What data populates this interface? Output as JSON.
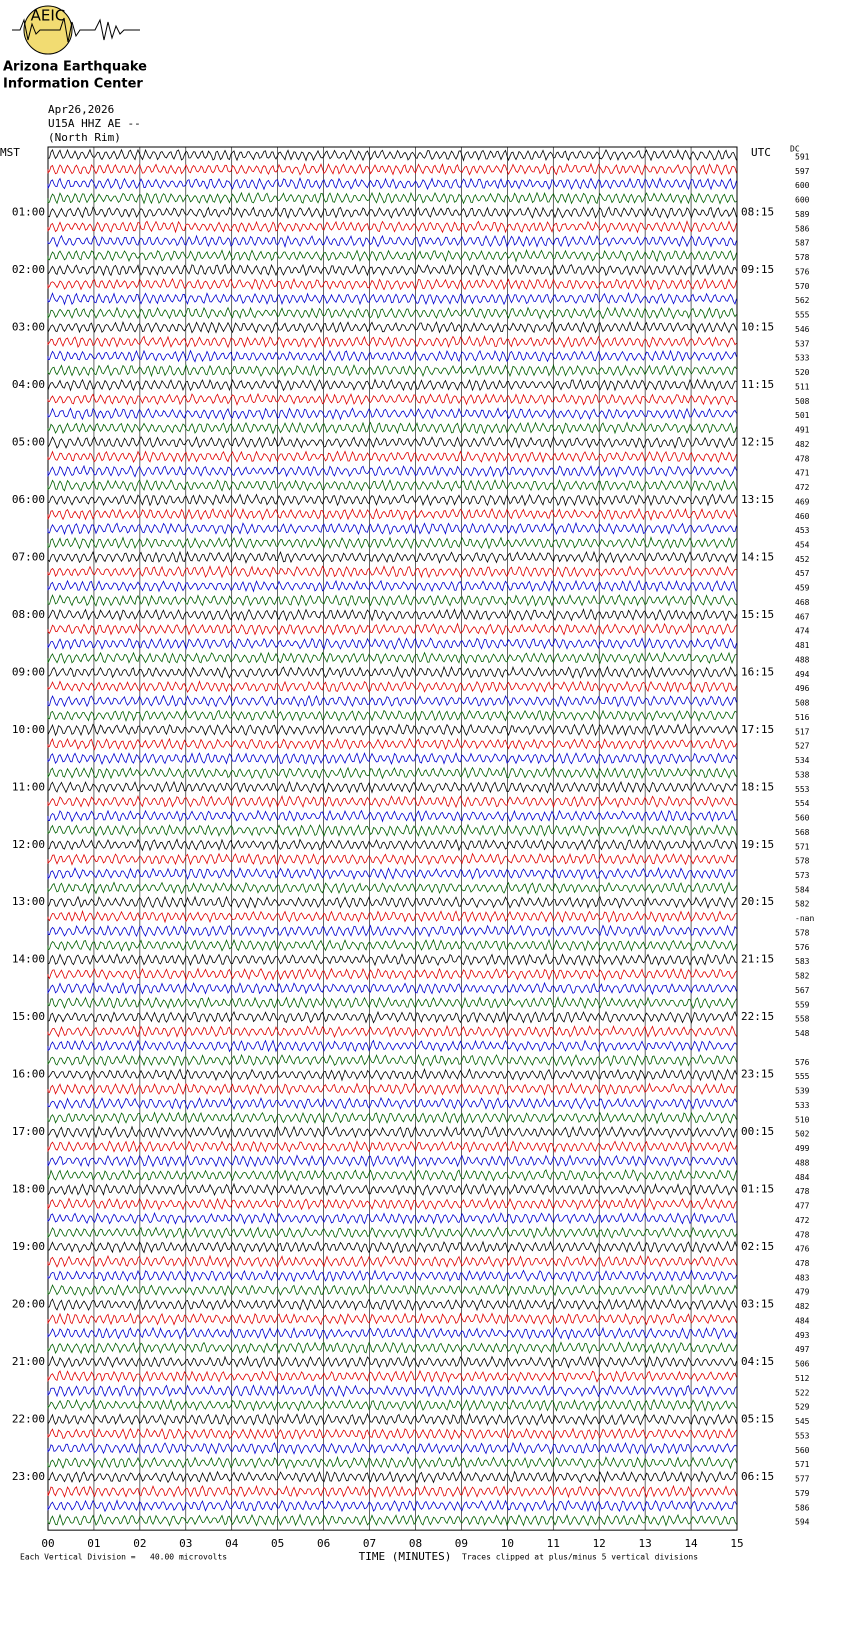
{
  "header": {
    "logo_text": "AEIC",
    "org_line1": "Arizona Earthquake",
    "org_line2": "Information Center",
    "date": "Apr26,2026",
    "station": "U15A HHZ AE --",
    "location": "(North Rim)"
  },
  "helicorder": {
    "left_zone": "MST",
    "right_zone": "UTC",
    "dc_header": "DC",
    "mst_hours": [
      "01:00",
      "02:00",
      "03:00",
      "04:00",
      "05:00",
      "06:00",
      "07:00",
      "08:00",
      "09:00",
      "10:00",
      "11:00",
      "12:00",
      "13:00",
      "14:00",
      "15:00",
      "16:00",
      "17:00",
      "18:00",
      "19:00",
      "20:00",
      "21:00",
      "22:00",
      "23:00"
    ],
    "utc_hours": [
      "08:15",
      "09:15",
      "10:15",
      "11:15",
      "12:15",
      "13:15",
      "14:15",
      "15:15",
      "16:15",
      "17:15",
      "18:15",
      "19:15",
      "20:15",
      "21:15",
      "22:15",
      "23:15",
      "00:15",
      "01:15",
      "02:15",
      "03:15",
      "04:15",
      "05:15",
      "06:15"
    ],
    "dc_offsets": [
      "591",
      "597",
      "600",
      "600",
      "589",
      "586",
      "587",
      "578",
      "576",
      "570",
      "562",
      "555",
      "546",
      "537",
      "533",
      "520",
      "511",
      "508",
      "501",
      "491",
      "482",
      "478",
      "471",
      "472",
      "469",
      "460",
      "453",
      "454",
      "452",
      "457",
      "459",
      "468",
      "467",
      "474",
      "481",
      "488",
      "494",
      "496",
      "508",
      "516",
      "517",
      "527",
      "534",
      "538",
      "553",
      "554",
      "560",
      "568",
      "571",
      "578",
      "573",
      "584",
      "582",
      "-nan",
      "578",
      "576",
      "583",
      "582",
      "567",
      "559",
      "558",
      "548",
      null,
      "576",
      "555",
      "539",
      "533",
      "510",
      "502",
      "499",
      "488",
      "484",
      "478",
      "477",
      "472",
      "478",
      "476",
      "478",
      "483",
      "479",
      "482",
      "484",
      "493",
      "497",
      "506",
      "512",
      "522",
      "529",
      "545",
      "553",
      "560",
      "571",
      "577",
      "579",
      "586",
      "594"
    ],
    "trace_colors": [
      "#000000",
      "#e00000",
      "#0000d0",
      "#006000"
    ],
    "xlim": [
      0,
      15
    ],
    "xticks": [
      {
        "value": 0,
        "label": "00"
      },
      {
        "value": 1,
        "label": "01"
      },
      {
        "value": 2,
        "label": "02"
      },
      {
        "value": 3,
        "label": "03"
      },
      {
        "value": 4,
        "label": "04"
      },
      {
        "value": 5,
        "label": "05"
      },
      {
        "value": 6,
        "label": "06"
      },
      {
        "value": 7,
        "label": "07"
      },
      {
        "value": 8,
        "label": "08"
      },
      {
        "value": 9,
        "label": "09"
      },
      {
        "value": 10,
        "label": "10"
      },
      {
        "value": 11,
        "label": "11"
      },
      {
        "value": 12,
        "label": "12"
      },
      {
        "value": 13,
        "label": "13"
      },
      {
        "value": 14,
        "label": "14"
      },
      {
        "value": 15,
        "label": "15"
      }
    ],
    "x_label": "TIME (MINUTES)",
    "scale_note": "Each Vertical Division =   40.00 microvolts",
    "clip_note": "Traces clipped at plus/minus 5 vertical divisions"
  }
}
